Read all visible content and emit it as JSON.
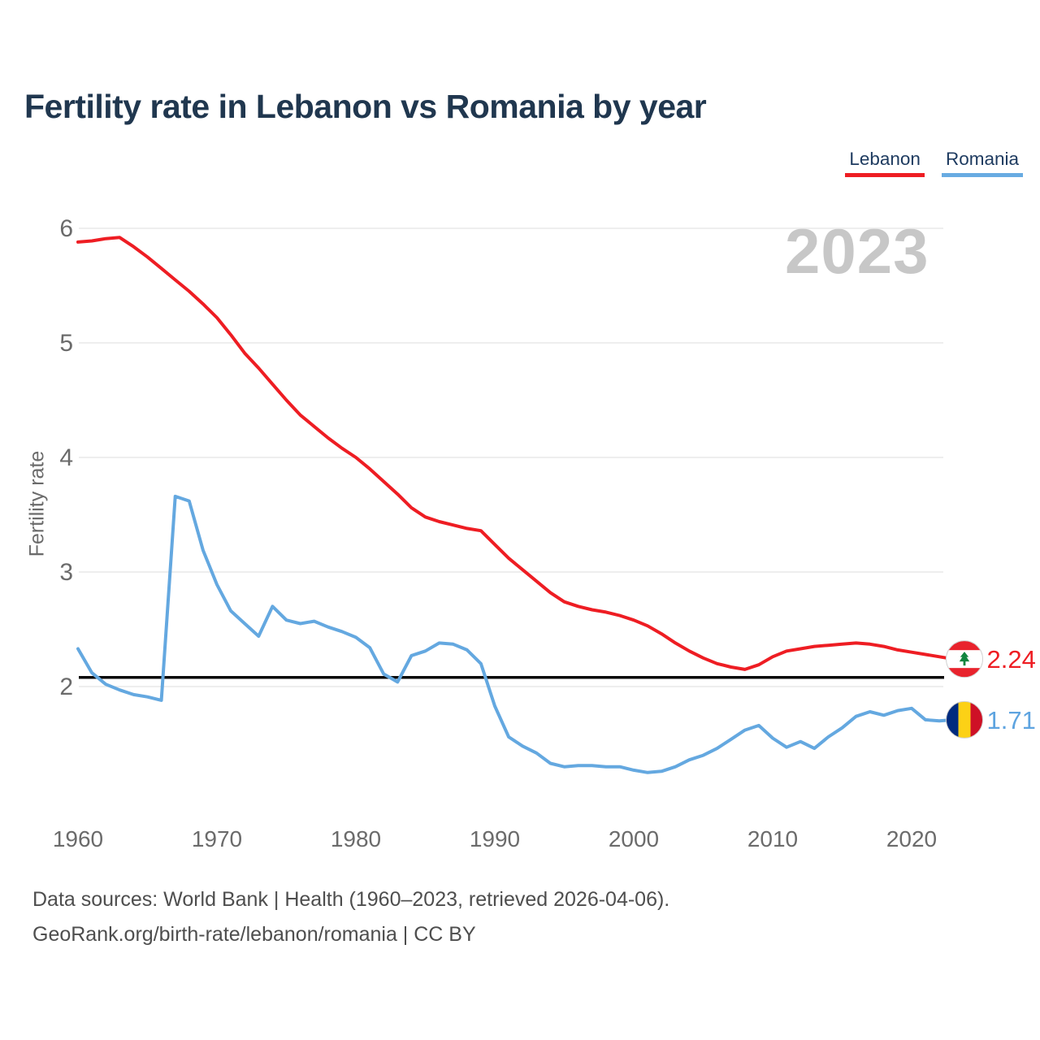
{
  "title": "Fertility rate in Lebanon vs Romania by year",
  "watermark_year": "2023",
  "legend": {
    "items": [
      {
        "label": "Lebanon",
        "color": "#ee1d23"
      },
      {
        "label": "Romania",
        "color": "#68abe2"
      }
    ]
  },
  "y_axis": {
    "title": "Fertility rate",
    "ticks": [
      "6",
      "5",
      "4",
      "3",
      "2"
    ]
  },
  "x_axis": {
    "ticks": [
      "1960",
      "1970",
      "1980",
      "1990",
      "2000",
      "2010",
      "2020"
    ]
  },
  "reference_line": {
    "value": 2.08,
    "color": "#0a0a0a"
  },
  "end_labels": [
    {
      "series": "Lebanon",
      "value": 2.24,
      "value_label": "2.24",
      "flag": "lebanon-flag",
      "color": "#ee1d23"
    },
    {
      "series": "Romania",
      "value": 1.71,
      "value_label": "1.71",
      "flag": "romania-flag",
      "color": "#5ea4e0"
    }
  ],
  "footer": {
    "line1": "Data sources: World Bank | Health (1960–2023, retrieved 2026-04-06).",
    "line2": "GeoRank.org/birth-rate/lebanon/romania | CC BY"
  },
  "chart_data": {
    "type": "line",
    "title": "Fertility rate in Lebanon vs Romania by year",
    "xlabel": "",
    "ylabel": "Fertility rate",
    "xlim": [
      1960,
      2023
    ],
    "ylim": [
      1.1,
      6.1
    ],
    "grid": "horizontal-only",
    "legend_position": "top-right",
    "reference_line_y": 2.08,
    "x": [
      1960,
      1961,
      1962,
      1963,
      1964,
      1965,
      1966,
      1967,
      1968,
      1969,
      1970,
      1971,
      1972,
      1973,
      1974,
      1975,
      1976,
      1977,
      1978,
      1979,
      1980,
      1981,
      1982,
      1983,
      1984,
      1985,
      1986,
      1987,
      1988,
      1989,
      1990,
      1991,
      1992,
      1993,
      1994,
      1995,
      1996,
      1997,
      1998,
      1999,
      2000,
      2001,
      2002,
      2003,
      2004,
      2005,
      2006,
      2007,
      2008,
      2009,
      2010,
      2011,
      2012,
      2013,
      2014,
      2015,
      2016,
      2017,
      2018,
      2019,
      2020,
      2021,
      2022,
      2023
    ],
    "series": [
      {
        "name": "Lebanon",
        "color": "#ee1d23",
        "values": [
          5.88,
          5.89,
          5.91,
          5.92,
          5.84,
          5.75,
          5.65,
          5.55,
          5.45,
          5.34,
          5.22,
          5.07,
          4.91,
          4.78,
          4.64,
          4.5,
          4.37,
          4.27,
          4.17,
          4.08,
          4.0,
          3.9,
          3.79,
          3.68,
          3.56,
          3.48,
          3.44,
          3.41,
          3.38,
          3.36,
          3.24,
          3.12,
          3.02,
          2.92,
          2.82,
          2.74,
          2.7,
          2.67,
          2.65,
          2.62,
          2.58,
          2.53,
          2.46,
          2.38,
          2.31,
          2.25,
          2.2,
          2.17,
          2.15,
          2.19,
          2.26,
          2.31,
          2.33,
          2.35,
          2.36,
          2.37,
          2.38,
          2.37,
          2.35,
          2.32,
          2.3,
          2.28,
          2.26,
          2.24
        ]
      },
      {
        "name": "Romania",
        "color": "#64a8e0",
        "values": [
          2.33,
          2.12,
          2.02,
          1.97,
          1.93,
          1.91,
          1.88,
          3.66,
          3.62,
          3.19,
          2.89,
          2.66,
          2.55,
          2.44,
          2.7,
          2.58,
          2.55,
          2.57,
          2.52,
          2.48,
          2.43,
          2.34,
          2.11,
          2.04,
          2.27,
          2.31,
          2.38,
          2.37,
          2.32,
          2.2,
          1.83,
          1.56,
          1.48,
          1.42,
          1.33,
          1.3,
          1.31,
          1.31,
          1.3,
          1.3,
          1.27,
          1.25,
          1.26,
          1.3,
          1.36,
          1.4,
          1.46,
          1.54,
          1.62,
          1.66,
          1.55,
          1.47,
          1.52,
          1.46,
          1.56,
          1.64,
          1.74,
          1.78,
          1.75,
          1.79,
          1.81,
          1.71,
          1.7,
          1.71
        ]
      }
    ]
  }
}
